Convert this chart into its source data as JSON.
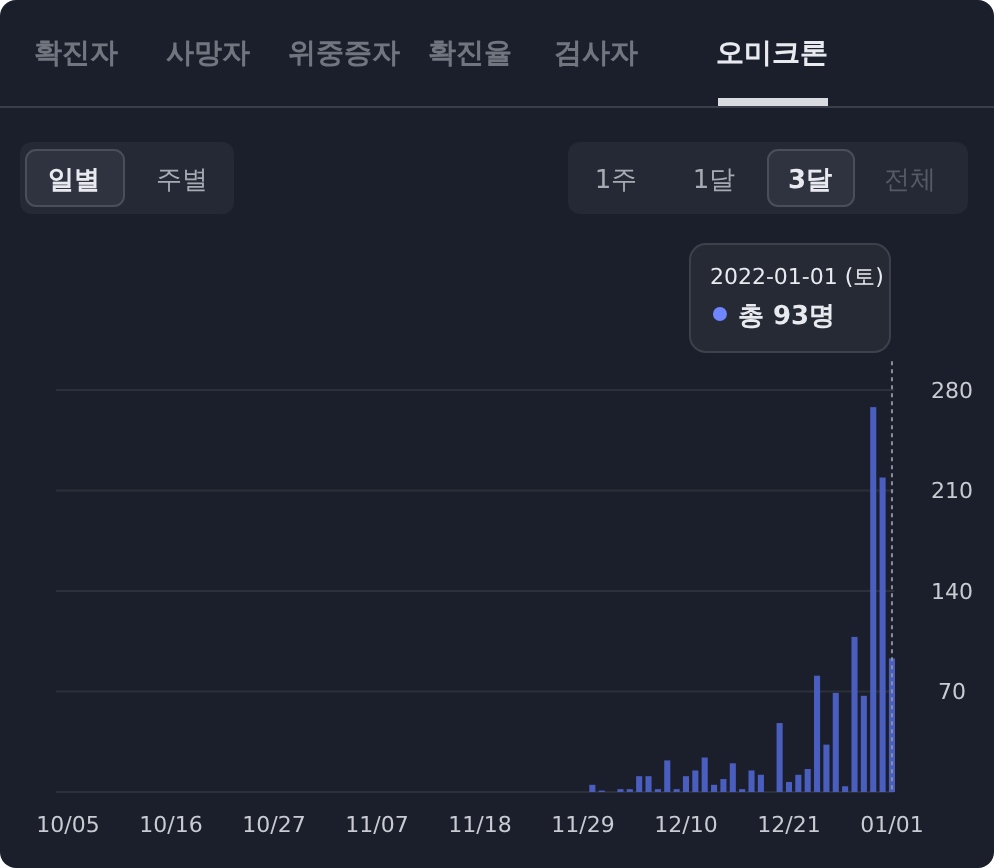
{
  "chart_data": {
    "type": "bar",
    "categories": [
      "10/05",
      null,
      null,
      null,
      null,
      null,
      null,
      null,
      null,
      null,
      null,
      "10/16",
      null,
      null,
      null,
      null,
      null,
      null,
      null,
      null,
      null,
      null,
      "10/27",
      null,
      null,
      null,
      null,
      null,
      null,
      null,
      null,
      null,
      null,
      "11/07",
      null,
      null,
      null,
      null,
      null,
      null,
      null,
      null,
      null,
      null,
      "11/18",
      null,
      null,
      null,
      null,
      null,
      null,
      null,
      null,
      null,
      null,
      "11/29",
      null,
      null,
      null,
      null,
      null,
      null,
      null,
      null,
      null,
      null,
      "12/10",
      null,
      null,
      null,
      null,
      null,
      null,
      null,
      null,
      null,
      null,
      "12/21",
      null,
      null,
      null,
      null,
      null,
      null,
      null,
      null,
      null,
      null,
      "01/01"
    ],
    "values": [
      0,
      0,
      0,
      0,
      0,
      0,
      0,
      0,
      0,
      0,
      0,
      0,
      0,
      0,
      0,
      0,
      0,
      0,
      0,
      0,
      0,
      0,
      0,
      0,
      0,
      0,
      0,
      0,
      0,
      0,
      0,
      0,
      0,
      0,
      0,
      0,
      0,
      0,
      0,
      0,
      0,
      0,
      0,
      0,
      0,
      0,
      0,
      0,
      0,
      0,
      0,
      0,
      0,
      0,
      0,
      0,
      5,
      1,
      0,
      2,
      2,
      11,
      11,
      2,
      22,
      2,
      11,
      15,
      24,
      5,
      9,
      20,
      2,
      15,
      12,
      0,
      48,
      7,
      12,
      16,
      81,
      33,
      69,
      4,
      108,
      67,
      268,
      219,
      93
    ],
    "color": "#4a5ec0",
    "ylim": [
      0,
      300
    ],
    "yticks": [
      70,
      140,
      210,
      280
    ],
    "grid": "y",
    "ref_lines": [
      {
        "axis": "x",
        "value": "01/01",
        "line_style": "dotted",
        "color": "#8a8f9c"
      }
    ],
    "annotations": [
      "확진자",
      "사망자",
      "위중증자",
      "확진율",
      "검사자",
      "오미크론",
      "일별",
      "주별",
      "1주",
      "1달",
      "3달",
      "전체",
      "2022-01-01 (토)",
      "총 93명"
    ]
  }
}
